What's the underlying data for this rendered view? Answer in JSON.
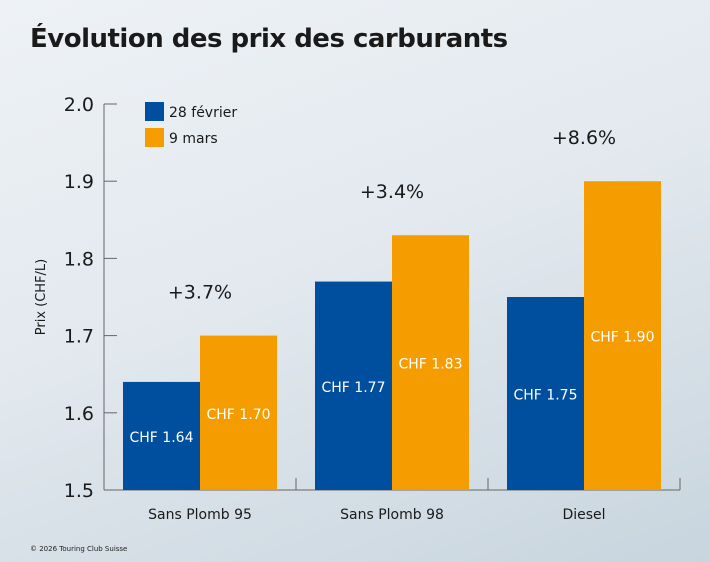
{
  "title": "Évolution des prix des carburants",
  "credit": "© 2026 Touring Club Suisse",
  "chart_data": {
    "type": "bar",
    "title": "Évolution des prix des carburants",
    "ylabel": "Prix (CHF/L)",
    "xlabel": "",
    "ylim": [
      1.5,
      2.0
    ],
    "yticks": [
      "1.5",
      "1.6",
      "1.7",
      "1.8",
      "1.9",
      "2.0"
    ],
    "categories": [
      "Sans Plomb 95",
      "Sans Plomb 98",
      "Diesel"
    ],
    "series": [
      {
        "name": "28 février",
        "color": "#004f9f",
        "values": [
          1.64,
          1.77,
          1.75
        ],
        "labels": [
          "CHF 1.64",
          "CHF 1.77",
          "CHF 1.75"
        ]
      },
      {
        "name": "9 mars",
        "color": "#f59c00",
        "values": [
          1.7,
          1.83,
          1.9
        ],
        "labels": [
          "CHF 1.70",
          "CHF 1.83",
          "CHF 1.90"
        ]
      }
    ],
    "annotations": [
      "+3.7%",
      "+3.4%",
      "+8.6%"
    ],
    "legend": "top-left",
    "grid": false
  }
}
